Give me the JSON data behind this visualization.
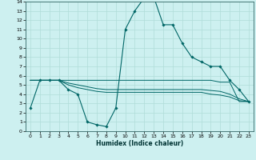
{
  "xlabel": "Humidex (Indice chaleur)",
  "bg_color": "#cdf0f0",
  "grid_color": "#b0ddd8",
  "line_color": "#006666",
  "xlim": [
    -0.5,
    23.5
  ],
  "ylim": [
    0,
    14
  ],
  "xticks": [
    0,
    1,
    2,
    3,
    4,
    5,
    6,
    7,
    8,
    9,
    10,
    11,
    12,
    13,
    14,
    15,
    16,
    17,
    18,
    19,
    20,
    21,
    22,
    23
  ],
  "yticks": [
    0,
    1,
    2,
    3,
    4,
    5,
    6,
    7,
    8,
    9,
    10,
    11,
    12,
    13,
    14
  ],
  "series": [
    {
      "x": [
        0,
        1,
        2,
        3,
        4,
        5,
        6,
        7,
        8,
        9,
        10,
        11,
        12,
        13,
        14,
        15,
        16,
        17,
        18,
        19,
        20,
        21,
        22,
        23
      ],
      "y": [
        2.5,
        5.5,
        5.5,
        5.5,
        4.5,
        4.0,
        1.0,
        0.7,
        0.5,
        2.5,
        11.0,
        13.0,
        14.4,
        14.5,
        11.5,
        11.5,
        9.5,
        8.0,
        7.5,
        7.0,
        7.0,
        5.5,
        4.5,
        3.2
      ],
      "has_marker": true
    },
    {
      "x": [
        0,
        1,
        2,
        3,
        4,
        5,
        6,
        7,
        8,
        9,
        10,
        11,
        12,
        13,
        14,
        15,
        16,
        17,
        18,
        19,
        20,
        21,
        22,
        23
      ],
      "y": [
        5.5,
        5.5,
        5.5,
        5.5,
        5.5,
        5.5,
        5.5,
        5.5,
        5.5,
        5.5,
        5.5,
        5.5,
        5.5,
        5.5,
        5.5,
        5.5,
        5.5,
        5.5,
        5.5,
        5.5,
        5.3,
        5.3,
        3.2,
        3.2
      ],
      "has_marker": false
    },
    {
      "x": [
        0,
        1,
        2,
        3,
        4,
        5,
        6,
        7,
        8,
        9,
        10,
        11,
        12,
        13,
        14,
        15,
        16,
        17,
        18,
        19,
        20,
        21,
        22,
        23
      ],
      "y": [
        5.5,
        5.5,
        5.5,
        5.5,
        5.2,
        5.0,
        4.8,
        4.6,
        4.5,
        4.5,
        4.5,
        4.5,
        4.5,
        4.5,
        4.5,
        4.5,
        4.5,
        4.5,
        4.5,
        4.4,
        4.3,
        4.0,
        3.5,
        3.2
      ],
      "has_marker": false
    },
    {
      "x": [
        0,
        1,
        2,
        3,
        4,
        5,
        6,
        7,
        8,
        9,
        10,
        11,
        12,
        13,
        14,
        15,
        16,
        17,
        18,
        19,
        20,
        21,
        22,
        23
      ],
      "y": [
        5.5,
        5.5,
        5.5,
        5.5,
        5.0,
        4.7,
        4.5,
        4.3,
        4.2,
        4.2,
        4.2,
        4.2,
        4.2,
        4.2,
        4.2,
        4.2,
        4.2,
        4.2,
        4.2,
        4.0,
        3.9,
        3.7,
        3.3,
        3.2
      ],
      "has_marker": false
    }
  ]
}
